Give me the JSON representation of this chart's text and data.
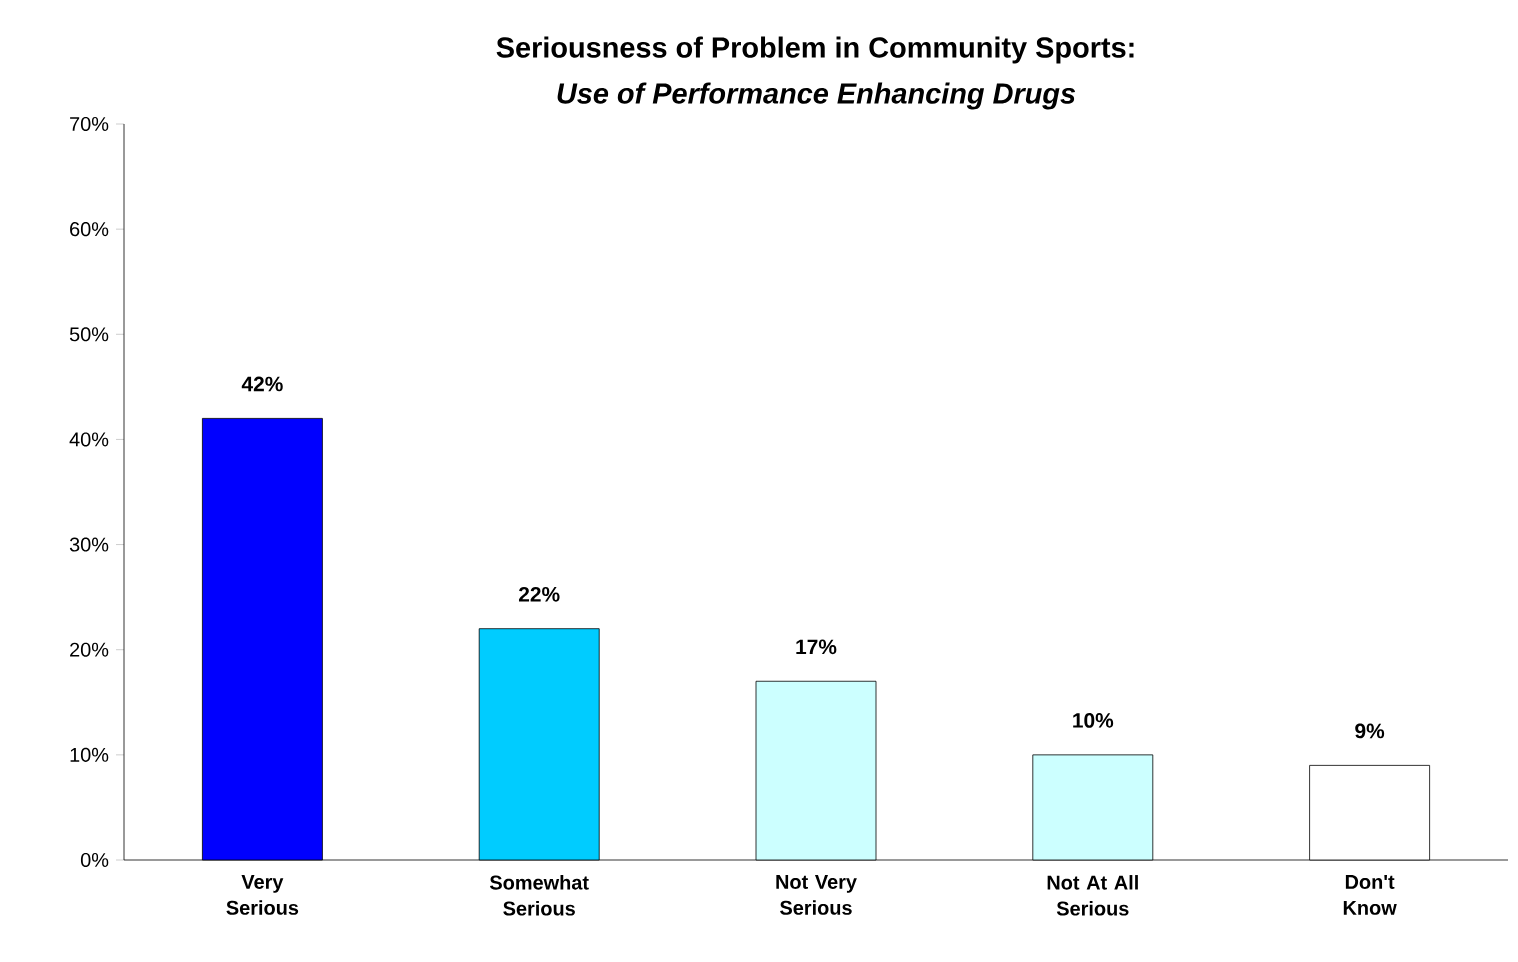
{
  "chart_data": {
    "type": "bar",
    "title": "Seriousness of Problem in Community Sports:",
    "subtitle": "Use of Performance Enhancing Drugs",
    "categories": [
      "Very Serious",
      "Somewhat Serious",
      "Not Very Serious",
      "Not At All Serious",
      "Don't Know"
    ],
    "values": [
      42,
      22,
      17,
      10,
      9
    ],
    "colors": [
      "#0000ff",
      "#00ccff",
      "#ccffff",
      "#ccffff",
      "#ffffff"
    ],
    "value_labels": [
      "42%",
      "22%",
      "17%",
      "10%",
      "9%"
    ],
    "ylim": [
      0,
      70
    ],
    "yticks": [
      {
        "value": 0,
        "label": "0%"
      },
      {
        "value": 10,
        "label": "10%"
      },
      {
        "value": 20,
        "label": "20%"
      },
      {
        "value": 30,
        "label": "30%"
      },
      {
        "value": 40,
        "label": "40%"
      },
      {
        "value": 50,
        "label": "50%"
      },
      {
        "value": 60,
        "label": "60%"
      },
      {
        "value": 70,
        "label": "70%"
      }
    ],
    "grid": false
  }
}
